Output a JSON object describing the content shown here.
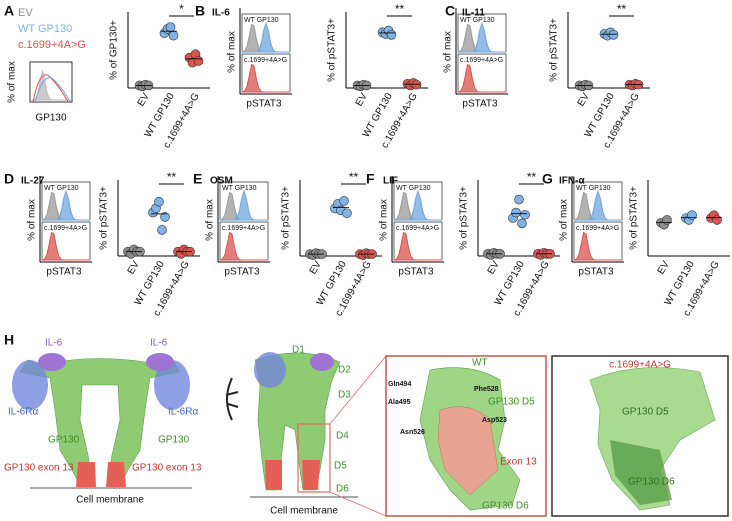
{
  "chart_data": [
    {
      "type": "strip",
      "panel": "A",
      "ylabel": "% of GP130+",
      "legend": [
        "EV",
        "WT GP130",
        "c.1699+4A>G"
      ],
      "categories": [
        "EV",
        "WT GP130",
        "c.1699+4A>G"
      ],
      "colors": [
        "#8c8c8c",
        "#7fb2e5",
        "#d9534f"
      ],
      "values": [
        [
          3,
          2,
          4,
          3
        ],
        [
          65,
          70,
          72,
          62
        ],
        [
          36,
          30,
          40,
          32
        ]
      ],
      "ylim": [
        0,
        90
      ],
      "significance": "*",
      "inset": {
        "xlabel": "GP130",
        "ylabel": "% of max"
      }
    },
    {
      "type": "strip",
      "panel": "B",
      "title": "IL-6",
      "ylabel": "% of pSTAT3+",
      "categories": [
        "EV",
        "WT GP130",
        "c.1699+4A>G"
      ],
      "colors": [
        "#8c8c8c",
        "#7fb2e5",
        "#d9534f"
      ],
      "values": [
        [
          3,
          2,
          4,
          3
        ],
        [
          66,
          64,
          68,
          63
        ],
        [
          5,
          3,
          6,
          4
        ]
      ],
      "ylim": [
        0,
        90
      ],
      "significance": "**",
      "inset": {
        "xlabel": "pSTAT3",
        "ylabel": "% of max",
        "labels": [
          "WT GP130",
          "c.1699+4A>G"
        ]
      }
    },
    {
      "type": "strip",
      "panel": "C",
      "title": "IL-11",
      "ylabel": "% of pSTAT3+",
      "categories": [
        "EV",
        "WT GP130",
        "c.1699+4A>G"
      ],
      "colors": [
        "#8c8c8c",
        "#7fb2e5",
        "#d9534f"
      ],
      "values": [
        [
          3,
          2,
          4,
          3
        ],
        [
          64,
          62,
          66,
          63
        ],
        [
          4,
          3,
          5,
          4
        ]
      ],
      "ylim": [
        0,
        90
      ],
      "significance": "**",
      "inset": {
        "xlabel": "pSTAT3",
        "ylabel": "% of max",
        "labels": [
          "WT GP130",
          "c.1699+4A>G"
        ]
      }
    },
    {
      "type": "strip",
      "panel": "D",
      "title": "IL-27",
      "ylabel": "% of pSTAT3+",
      "categories": [
        "EV",
        "WT GP130",
        "c.1699+4A>G"
      ],
      "colors": [
        "#8c8c8c",
        "#7fb2e5",
        "#d9534f"
      ],
      "values": [
        [
          2,
          1,
          3,
          2,
          2
        ],
        [
          20,
          22,
          25,
          12,
          18
        ],
        [
          2,
          1,
          3,
          2,
          2
        ]
      ],
      "ylim": [
        0,
        35
      ],
      "significance": "**",
      "inset": {
        "xlabel": "pSTAT3",
        "ylabel": "% of max",
        "labels": [
          "WT GP130",
          "c.1699+4A>G"
        ]
      }
    },
    {
      "type": "strip",
      "panel": "E",
      "title": "OSM",
      "ylabel": "% of pSTAT3+",
      "categories": [
        "EV",
        "WT GP130",
        "c.1699+4A>G"
      ],
      "colors": [
        "#8c8c8c",
        "#7fb2e5",
        "#d9534f"
      ],
      "values": [
        [
          2,
          1,
          3,
          2,
          2
        ],
        [
          50,
          55,
          48,
          58,
          45
        ],
        [
          2,
          1,
          3,
          2,
          2
        ]
      ],
      "ylim": [
        0,
        80
      ],
      "significance": "**",
      "inset": {
        "xlabel": "pSTAT3",
        "ylabel": "% of max",
        "labels": [
          "WT GP130",
          "c.1699+4A>G"
        ]
      }
    },
    {
      "type": "strip",
      "panel": "F",
      "title": "LIF",
      "ylabel": "% of pSTAT3+",
      "categories": [
        "EV",
        "WT GP130",
        "c.1699+4A>G"
      ],
      "colors": [
        "#8c8c8c",
        "#7fb2e5",
        "#d9534f"
      ],
      "values": [
        [
          2,
          1,
          3,
          2,
          2
        ],
        [
          35,
          40,
          52,
          30,
          38
        ],
        [
          2,
          1,
          3,
          2,
          2
        ]
      ],
      "ylim": [
        0,
        70
      ],
      "significance": "**",
      "inset": {
        "xlabel": "pSTAT3",
        "ylabel": "% of max",
        "labels": [
          "WT GP130",
          "c.1699+4A>G"
        ]
      }
    },
    {
      "type": "strip",
      "panel": "G",
      "title": "IFN-α",
      "ylabel": "% of pSTAT3+",
      "categories": [
        "EV",
        "WT GP130",
        "c.1699+4A>G"
      ],
      "colors": [
        "#8c8c8c",
        "#7fb2e5",
        "#d9534f"
      ],
      "values": [
        [
          35,
          33,
          38
        ],
        [
          40,
          38,
          43
        ],
        [
          40,
          43,
          38
        ]
      ],
      "ylim": [
        0,
        80
      ],
      "inset": {
        "xlabel": "pSTAT3",
        "ylabel": "% of max",
        "labels": [
          "WT GP130",
          "c.1699+4A>G"
        ]
      }
    }
  ],
  "panel_h": {
    "label": "H",
    "left": {
      "ligands": [
        "IL-6",
        "IL-6"
      ],
      "receptors": [
        "IL-6Rα",
        "IL-6Rα"
      ],
      "chains": [
        "GP130",
        "GP130"
      ],
      "exons": [
        "GP130 exon 13",
        "GP130 exon 13"
      ],
      "membrane": "Cell membrane"
    },
    "middle": {
      "domains": [
        "D1",
        "D2",
        "D3",
        "D4",
        "D5",
        "D6"
      ],
      "membrane": "Cell membrane"
    },
    "zoom_wt": {
      "title": "WT",
      "residues": [
        "Gln494",
        "Ala495",
        "Asn526",
        "Phe528",
        "Asp523"
      ],
      "labels": [
        "GP130 D5",
        "Exon 13",
        "GP130 D6"
      ]
    },
    "zoom_mutant": {
      "title": "c.1699+4A>G",
      "labels": [
        "GP130 D5",
        "GP130 D6"
      ]
    }
  }
}
